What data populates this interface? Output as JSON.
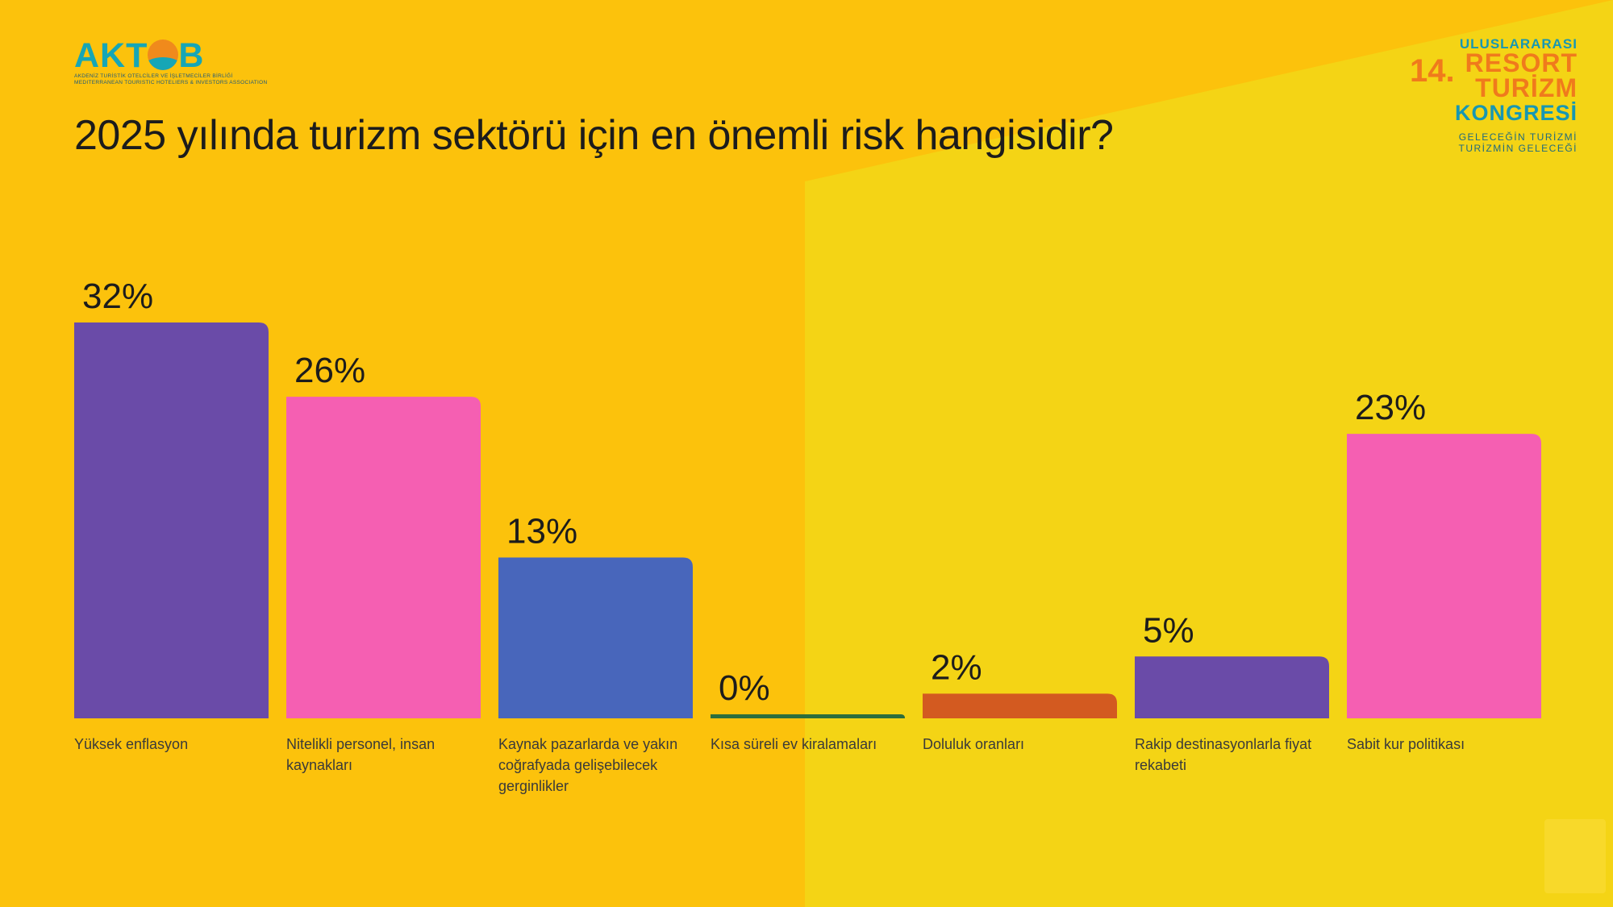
{
  "header": {
    "title": "2025 yılında turizm sektörü için en önemli risk hangisidir?"
  },
  "logo_left": {
    "word_pre": "AKT",
    "word_post": "B",
    "sub1": "AKDENİZ TURİSTİK OTELCİLER VE İŞLETMECİLER BİRLİĞİ",
    "sub2": "MEDITERRANEAN TOURISTIC HOTELIERS & INVESTORS ASSOCIATION",
    "color": "#16a6b6"
  },
  "logo_right": {
    "line1": "ULUSLARARASI",
    "number": "14.",
    "line2": "RESORT",
    "line3": "TURİZM",
    "line4": "KONGRESİ",
    "tag1": "GELECEĞİN TURİZMİ",
    "tag2": "TURİZMİN GELECEĞİ",
    "colors": {
      "orange": "#f07a1c",
      "teal": "#1797b3"
    }
  },
  "chart_data": {
    "type": "bar",
    "title": "2025 yılında turizm sektörü için en önemli risk hangisidir?",
    "categories": [
      "Yüksek enflasyon",
      "Nitelikli personel, insan kaynakları",
      "Kaynak pazarlarda ve yakın coğrafyada gelişebilecek gerginlikler",
      "Kısa süreli ev kiralamaları",
      "Doluluk oranları",
      "Rakip destinasyonlarla fiyat rekabeti",
      "Sabit kur politikası"
    ],
    "category_lines": [
      [
        "Yüksek enflasyon"
      ],
      [
        "Nitelikli personel, insan",
        "kaynakları"
      ],
      [
        "Kaynak pazarlarda ve yakın",
        "coğrafyada gelişebilecek",
        "gerginlikler"
      ],
      [
        "Kısa süreli ev kiralamaları"
      ],
      [
        "Doluluk oranları"
      ],
      [
        "Rakip destinasyonlarla fiyat",
        "rekabeti"
      ],
      [
        "Sabit kur politikası"
      ]
    ],
    "values": [
      32,
      26,
      13,
      0,
      2,
      5,
      23
    ],
    "value_labels": [
      "32%",
      "26%",
      "13%",
      "0%",
      "2%",
      "5%",
      "23%"
    ],
    "unit": "%",
    "colors": [
      "#6a4ba8",
      "#f55fb2",
      "#4866bb",
      "#2c6e3c",
      "#d35a20",
      "#6a4ba8",
      "#f55fb2"
    ],
    "ylim": [
      0,
      32
    ],
    "grid": false,
    "legend": "none"
  }
}
